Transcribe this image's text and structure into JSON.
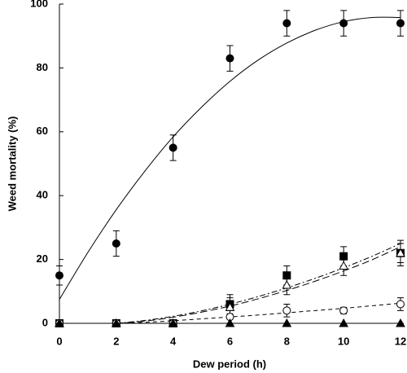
{
  "chart_data": {
    "type": "scatter",
    "x_label": "Dew period (h)",
    "y_label": "Weed mortality (%)",
    "xlim": [
      0,
      12
    ],
    "xticks": [
      0,
      2,
      4,
      6,
      8,
      10,
      12
    ],
    "ylim": [
      0,
      100
    ],
    "yticks": [
      0,
      20,
      40,
      60,
      80,
      100
    ],
    "x": [
      0,
      2,
      4,
      6,
      8,
      10,
      12
    ],
    "series": [
      {
        "marker": "circle",
        "filled": true,
        "color": "#000000",
        "values": [
          15,
          25,
          55,
          83,
          94,
          94,
          94
        ],
        "errors": [
          3,
          4,
          4,
          4,
          4,
          4,
          4
        ]
      },
      {
        "marker": "square",
        "filled": true,
        "color": "#000000",
        "values": [
          0,
          0,
          0,
          6,
          15,
          21,
          22
        ],
        "errors": [
          0,
          1,
          0,
          3,
          3,
          3,
          4
        ]
      },
      {
        "marker": "triangle",
        "filled": false,
        "color": "#000000",
        "values": [
          0,
          0,
          0,
          5,
          12,
          18,
          22
        ],
        "errors": [
          0,
          0,
          0,
          3,
          3,
          3,
          3
        ]
      },
      {
        "marker": "circle",
        "filled": false,
        "color": "#000000",
        "values": [
          0,
          0,
          0,
          2,
          4,
          4,
          6
        ],
        "errors": [
          0,
          0,
          0,
          2,
          2,
          1,
          2
        ]
      },
      {
        "marker": "triangle",
        "filled": true,
        "color": "#000000",
        "values": [
          0,
          0,
          0,
          0,
          0,
          0,
          0
        ],
        "errors": [
          0,
          0,
          0,
          0,
          0,
          0,
          0
        ]
      }
    ],
    "fits": [
      {
        "dash": "none",
        "color": "#000000",
        "x": [
          0,
          1,
          2,
          3,
          4,
          5,
          6,
          7,
          8,
          9,
          10,
          11,
          12
        ],
        "values": [
          7.5,
          22.2,
          35.6,
          47.6,
          58.4,
          67.7,
          75.8,
          82.5,
          87.8,
          91.8,
          94.5,
          95.8,
          95.8
        ]
      },
      {
        "dash": "7 3 2 3",
        "color": "#000000",
        "x": [
          2,
          3,
          4,
          5,
          6,
          7,
          8,
          9,
          10,
          11,
          12
        ],
        "values": [
          0,
          0.9,
          2.2,
          3.9,
          6.0,
          8.4,
          11.1,
          14.1,
          17.4,
          21.0,
          25
        ]
      },
      {
        "dash": "9 4",
        "color": "#000000",
        "x": [
          2,
          3,
          4,
          5,
          6,
          7,
          8,
          9,
          10,
          11,
          12
        ],
        "values": [
          0,
          0.7,
          1.9,
          3.5,
          5.4,
          7.7,
          10.3,
          13.2,
          16.4,
          19.9,
          24
        ]
      },
      {
        "dash": "5 4",
        "color": "#000000",
        "x": [
          2,
          3,
          4,
          5,
          6,
          7,
          8,
          9,
          10,
          11,
          12
        ],
        "values": [
          0,
          0.3,
          0.8,
          1.4,
          2.0,
          2.6,
          3.3,
          4.0,
          4.7,
          5.5,
          6.3
        ]
      }
    ]
  }
}
